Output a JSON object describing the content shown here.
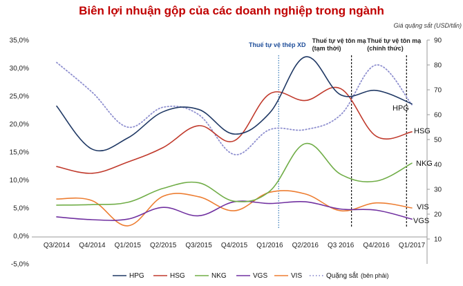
{
  "chart_data": {
    "type": "line",
    "title": "Biên lợi nhuận gộp của các doanh nghiệp trong ngành",
    "y2_label": "Giá quặng sắt (USD/tấn)",
    "categories": [
      "Q3/2014",
      "Q4/2014",
      "Q1/2015",
      "Q2/2015",
      "Q3/2015",
      "Q4/2015",
      "Q1/2016",
      "Q2/2016",
      "Q3 2016",
      "Q4/2016",
      "Q1/2017"
    ],
    "y_ticks": [
      "-5,0%",
      "0,0%",
      "5,0%",
      "10,0%",
      "15,0%",
      "20,0%",
      "25,0%",
      "30,0%",
      "35,0%"
    ],
    "y_range": [
      -5,
      35
    ],
    "y2_ticks": [
      "10",
      "20",
      "30",
      "40",
      "50",
      "60",
      "70",
      "80",
      "90"
    ],
    "y2_range": [
      10,
      90
    ],
    "series": [
      {
        "name": "HPG",
        "axis": "left",
        "color": "#1f3864",
        "style": "solid",
        "values": [
          23.2,
          15.5,
          17.5,
          22.2,
          22.6,
          18.2,
          22.0,
          32.0,
          25.2,
          26.0,
          23.6
        ]
      },
      {
        "name": "HSG",
        "axis": "left",
        "color": "#c0392b",
        "style": "solid",
        "values": [
          12.4,
          11.2,
          13.2,
          15.8,
          19.7,
          17.0,
          25.4,
          24.2,
          26.3,
          17.8,
          18.6
        ]
      },
      {
        "name": "NKG",
        "axis": "left",
        "color": "#70ad47",
        "style": "solid",
        "values": [
          5.5,
          5.6,
          6.0,
          8.5,
          9.5,
          6.2,
          8.0,
          16.5,
          11.0,
          9.8,
          13.0
        ]
      },
      {
        "name": "VGS",
        "axis": "left",
        "color": "#7030a0",
        "style": "solid",
        "values": [
          3.4,
          2.9,
          3.0,
          5.1,
          3.6,
          6.1,
          5.8,
          6.1,
          4.8,
          4.6,
          3.0
        ]
      },
      {
        "name": "VIS",
        "axis": "left",
        "color": "#ed7d31",
        "style": "solid",
        "values": [
          6.6,
          6.3,
          1.8,
          7.1,
          7.0,
          4.5,
          7.8,
          7.5,
          4.5,
          5.9,
          5.0
        ]
      },
      {
        "name": "Quặng sắt",
        "axis": "right",
        "color": "#8e8fcf",
        "style": "dotted",
        "values": [
          81,
          69,
          55,
          63,
          60,
          44,
          54,
          54,
          60,
          80,
          64
        ]
      }
    ],
    "end_labels": [
      "HPG",
      "HSG",
      "NKG",
      "VIS",
      "VGS"
    ],
    "annotations": [
      {
        "text": "Thuế tự vệ thép XD",
        "at_category": 6.25,
        "line_color": "#2e75b6",
        "line_style": "dotted"
      },
      {
        "text_lines": [
          "Thuế tự vệ tôn mạ",
          "(tạm thời)"
        ],
        "at_category": 8.3,
        "line_color": "#111111",
        "line_style": "dashed"
      },
      {
        "text_lines": [
          "Thuế tự vệ tôn mạ",
          "(chính thức)"
        ],
        "at_category": 9.85,
        "line_color": "#111111",
        "line_style": "dashed"
      }
    ],
    "legend": {
      "position": "bottom",
      "items": [
        "HPG",
        "HSG",
        "NKG",
        "VGS",
        "VIS",
        "Quặng sắt"
      ],
      "note": "(bên phải)"
    },
    "grid": false
  }
}
